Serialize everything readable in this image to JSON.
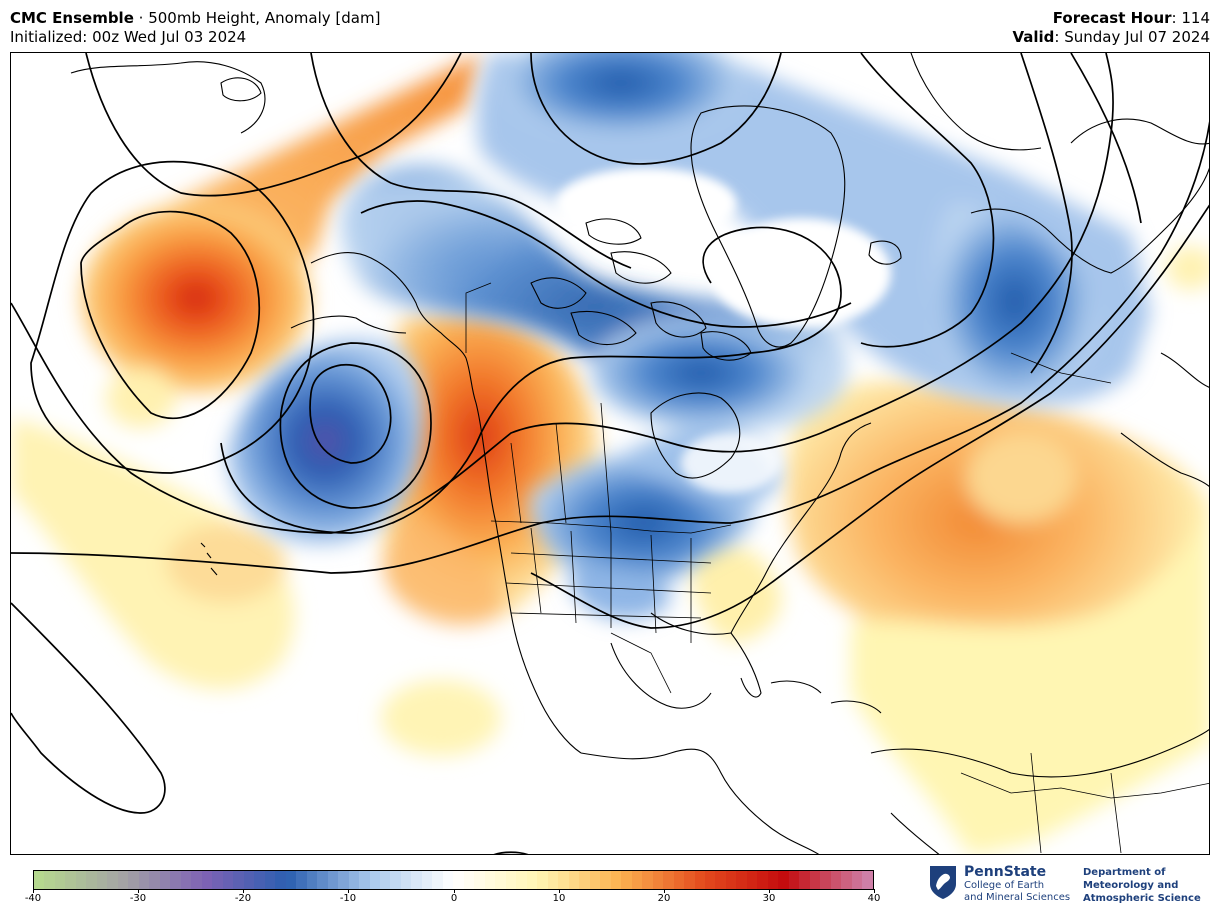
{
  "header": {
    "model": "CMC Ensemble",
    "separator": " · ",
    "product": "500mb Height, Anomaly [dam]",
    "init_label": "Initialized: 00z Wed Jul 03 2024",
    "forecast_hour_label": "Forecast Hour",
    "forecast_hour_value": ": 114",
    "valid_label": "Valid",
    "valid_value": ": Sunday Jul 07 2024"
  },
  "colorbar": {
    "min": -40,
    "max": 40,
    "ticks": [
      "-40",
      "-30",
      "-20",
      "-10",
      "0",
      "10",
      "20",
      "30",
      "40"
    ],
    "stops": [
      "#b5d88f",
      "#a4a4a4",
      "#7e62b5",
      "#2b5fb0",
      "#a9c8ec",
      "#ffffff",
      "#fff7b5",
      "#fcb351",
      "#e44c1e",
      "#c40b0e",
      "#cf7fa7"
    ]
  },
  "logo": {
    "name": "PennState",
    "line1": "College of Earth",
    "line2": "and Mineral Sciences",
    "dept1": "Department of",
    "dept2": "Meteorology and",
    "dept3": "Atmospheric Science"
  }
}
